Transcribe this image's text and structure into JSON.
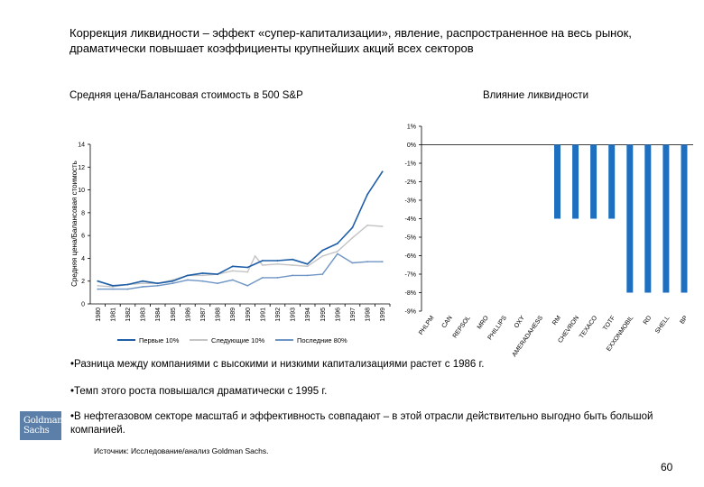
{
  "title": "Коррекция ликвидности – эффект «супер-капитализации», явление, распространенное на весь рынок, драматически повышает коэффициенты крупнейших акций всех секторов",
  "logo": {
    "line1": "Goldman",
    "line2": "Sachs"
  },
  "bullets": [
    "•Разница между компаниями с высокими и низкими капитализациями растет с 1986 г.",
    "•Темп этого роста повышался драматически с 1995 г.",
    "•В нефтегазовом секторе масштаб и эффективность совпадают – в этой отрасли действительно выгодно быть большой компанией."
  ],
  "source": "Источник: Исследование/анализ Goldman Sachs.",
  "page_number": "60",
  "colors": {
    "top10": "#1f5fa8",
    "next10": "#c4c4c4",
    "last80": "#6f95c4",
    "bars": "#1f6fc0",
    "logo": "#5b7fa8"
  },
  "chart_data": [
    {
      "type": "line",
      "title": "Средняя цена/Балансовая стоимость в 500 S&P",
      "ylabel": "Средняя цена/Балансовая стоимость",
      "xlabel": "",
      "ylim": [
        0,
        14
      ],
      "yticks": [
        "0",
        "2",
        "4",
        "6",
        "8",
        "10",
        "12",
        "14"
      ],
      "x": [
        "1980",
        "1981",
        "1982",
        "1983",
        "1984",
        "1985",
        "1986",
        "1987",
        "1988",
        "1989",
        "1990",
        "1991",
        "1992",
        "1993",
        "1994",
        "1995",
        "1996",
        "1997",
        "1998",
        "1999"
      ],
      "legend_position": "bottom",
      "series": [
        {
          "name": "Первые 10%",
          "values": [
            [
              0,
              2.0
            ],
            [
              1,
              1.6
            ],
            [
              2,
              1.7
            ],
            [
              3,
              2.0
            ],
            [
              4,
              1.8
            ],
            [
              5,
              2.0
            ],
            [
              6,
              2.5
            ],
            [
              7,
              2.7
            ],
            [
              8,
              2.6
            ],
            [
              9,
              3.3
            ],
            [
              10,
              3.2
            ],
            [
              11,
              3.8
            ],
            [
              12,
              3.8
            ],
            [
              13,
              3.9
            ],
            [
              14,
              3.5
            ],
            [
              15,
              4.7
            ],
            [
              16,
              5.3
            ],
            [
              17,
              6.7
            ],
            [
              18,
              9.6
            ],
            [
              19,
              11.6
            ]
          ]
        },
        {
          "name": "Следующие 10%",
          "values": [
            [
              0,
              1.6
            ],
            [
              1,
              1.5
            ],
            [
              2,
              1.7
            ],
            [
              3,
              1.8
            ],
            [
              4,
              1.8
            ],
            [
              5,
              2.1
            ],
            [
              6,
              2.5
            ],
            [
              7,
              2.5
            ],
            [
              8,
              2.6
            ],
            [
              9,
              2.9
            ],
            [
              10,
              2.8
            ],
            [
              10.5,
              4.2
            ],
            [
              11,
              3.4
            ],
            [
              12,
              3.5
            ],
            [
              13,
              3.4
            ],
            [
              14,
              3.3
            ],
            [
              15,
              4.2
            ],
            [
              16,
              4.6
            ],
            [
              17,
              5.8
            ],
            [
              18,
              6.9
            ],
            [
              19,
              6.8
            ]
          ]
        },
        {
          "name": "Последние 80%",
          "values": [
            [
              0,
              1.3
            ],
            [
              1,
              1.3
            ],
            [
              2,
              1.3
            ],
            [
              3,
              1.5
            ],
            [
              4,
              1.6
            ],
            [
              5,
              1.8
            ],
            [
              6,
              2.1
            ],
            [
              7,
              2.0
            ],
            [
              8,
              1.8
            ],
            [
              9,
              2.1
            ],
            [
              10,
              1.6
            ],
            [
              11,
              2.3
            ],
            [
              12,
              2.3
            ],
            [
              13,
              2.5
            ],
            [
              14,
              2.5
            ],
            [
              15,
              2.6
            ],
            [
              16,
              4.4
            ],
            [
              17,
              3.6
            ],
            [
              18,
              3.7
            ],
            [
              19,
              3.7
            ]
          ]
        }
      ]
    },
    {
      "type": "bar",
      "title": "Влияние ликвидности",
      "xlabel": "",
      "ylabel": "",
      "ylim": [
        -9,
        1
      ],
      "yticks": [
        "1%",
        "0%",
        "-1%",
        "-2%",
        "-3%",
        "-4%",
        "-5%",
        "-6%",
        "-7%",
        "-8%",
        "-9%"
      ],
      "categories": [
        "PHLPM",
        "CAN",
        "REPSOL",
        "MRO",
        "PHILLIPS",
        "OXY",
        "AMERADAHESS",
        "RM",
        "CHEVRON",
        "TEXACO",
        "TOTF",
        "EXXONMOBIL",
        "RD",
        "SHELL",
        "BP"
      ],
      "values": [
        0,
        0,
        0,
        0,
        0,
        0,
        0,
        -4,
        -4,
        -4,
        -4,
        -8,
        -8,
        -8,
        -8
      ]
    }
  ]
}
